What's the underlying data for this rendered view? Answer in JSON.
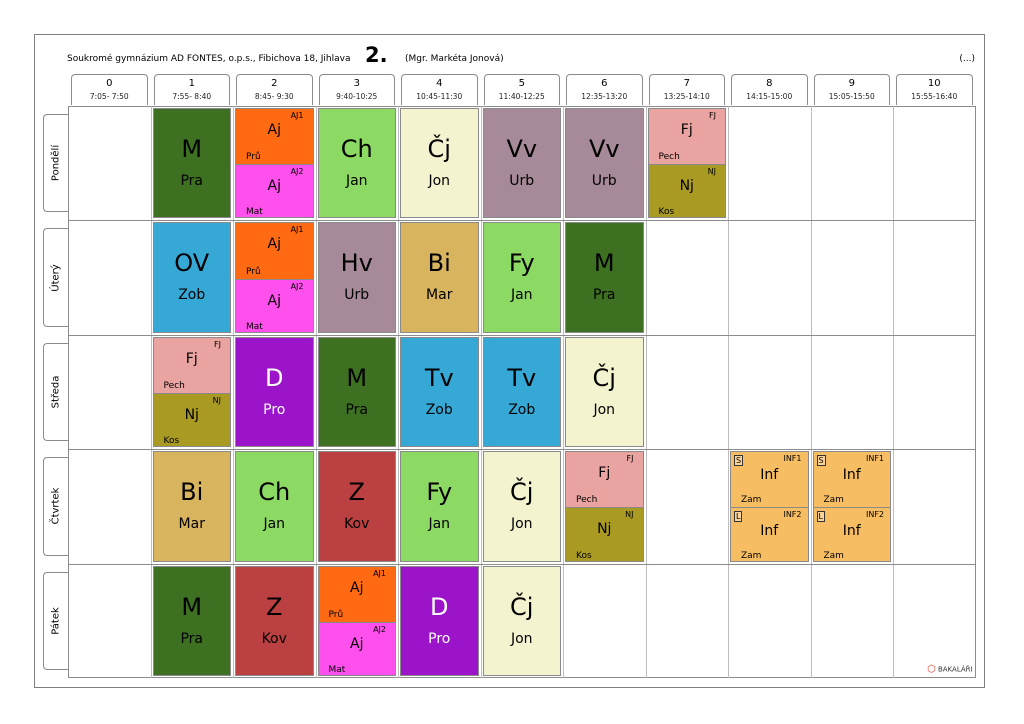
{
  "header": {
    "school": "Soukromé gymnázium AD FONTES, o.p.s., Fibichova 18, Jihlava",
    "class_name": "2.",
    "teacher": "(Mgr. Markéta Jonová)",
    "ellipsis": "(...)"
  },
  "periods": [
    {
      "num": "0",
      "time": "7:05- 7:50"
    },
    {
      "num": "1",
      "time": "7:55- 8:40"
    },
    {
      "num": "2",
      "time": "8:45- 9:30"
    },
    {
      "num": "3",
      "time": "9:40-10:25"
    },
    {
      "num": "4",
      "time": "10:45-11:30"
    },
    {
      "num": "5",
      "time": "11:40-12:25"
    },
    {
      "num": "6",
      "time": "12:35-13:20"
    },
    {
      "num": "7",
      "time": "13:25-14:10"
    },
    {
      "num": "8",
      "time": "14:15-15:00"
    },
    {
      "num": "9",
      "time": "15:05-15:50"
    },
    {
      "num": "10",
      "time": "15:55-16:40"
    }
  ],
  "days": [
    "Pondělí",
    "Úterý",
    "Středa",
    "Čtvrtek",
    "Pátek"
  ],
  "colors": {
    "M": "#3d7121",
    "Aj": "#ff6a13",
    "Aj2": "#ff50ee",
    "Ch": "#8cd964",
    "Cj": "#f4f3cf",
    "Vv": "#a68a99",
    "Fj": "#e9a3a0",
    "Nj": "#a99a23",
    "OV": "#36a8d6",
    "Hv": "#a68a99",
    "Bi": "#d9b45f",
    "Fy": "#8cd964",
    "D": "#9b14c9",
    "Tv": "#36a8d6",
    "Z": "#bb4042",
    "Inf": "#f7bd63"
  },
  "schedule": [
    {
      "day": 0,
      "period": 1,
      "subject": "M",
      "teacher": "Pra",
      "color": "#3d7121",
      "light": false
    },
    {
      "day": 0,
      "period": 2,
      "split": [
        {
          "subject": "Aj",
          "teacher": "Prů",
          "group": "AJ1",
          "color": "#ff6a13"
        },
        {
          "subject": "Aj",
          "teacher": "Mat",
          "group": "AJ2",
          "color": "#ff50ee"
        }
      ]
    },
    {
      "day": 0,
      "period": 3,
      "subject": "Ch",
      "teacher": "Jan",
      "color": "#8cd964"
    },
    {
      "day": 0,
      "period": 4,
      "subject": "Čj",
      "teacher": "Jon",
      "color": "#f4f3cf"
    },
    {
      "day": 0,
      "period": 5,
      "subject": "Vv",
      "teacher": "Urb",
      "color": "#a68a99"
    },
    {
      "day": 0,
      "period": 6,
      "subject": "Vv",
      "teacher": "Urb",
      "color": "#a68a99"
    },
    {
      "day": 0,
      "period": 7,
      "split": [
        {
          "subject": "Fj",
          "teacher": "Pech",
          "group": "FJ",
          "color": "#e9a3a0"
        },
        {
          "subject": "Nj",
          "teacher": "Kos",
          "group": "NJ",
          "color": "#a99a23"
        }
      ]
    },
    {
      "day": 1,
      "period": 1,
      "subject": "OV",
      "teacher": "Zob",
      "color": "#36a8d6"
    },
    {
      "day": 1,
      "period": 2,
      "split": [
        {
          "subject": "Aj",
          "teacher": "Prů",
          "group": "AJ1",
          "color": "#ff6a13"
        },
        {
          "subject": "Aj",
          "teacher": "Mat",
          "group": "AJ2",
          "color": "#ff50ee"
        }
      ]
    },
    {
      "day": 1,
      "period": 3,
      "subject": "Hv",
      "teacher": "Urb",
      "color": "#a68a99"
    },
    {
      "day": 1,
      "period": 4,
      "subject": "Bi",
      "teacher": "Mar",
      "color": "#d9b45f"
    },
    {
      "day": 1,
      "period": 5,
      "subject": "Fy",
      "teacher": "Jan",
      "color": "#8cd964"
    },
    {
      "day": 1,
      "period": 6,
      "subject": "M",
      "teacher": "Pra",
      "color": "#3d7121"
    },
    {
      "day": 2,
      "period": 1,
      "split": [
        {
          "subject": "Fj",
          "teacher": "Pech",
          "group": "FJ",
          "color": "#e9a3a0"
        },
        {
          "subject": "Nj",
          "teacher": "Kos",
          "group": "NJ",
          "color": "#a99a23"
        }
      ]
    },
    {
      "day": 2,
      "period": 2,
      "subject": "D",
      "teacher": "Pro",
      "color": "#9b14c9",
      "light": true
    },
    {
      "day": 2,
      "period": 3,
      "subject": "M",
      "teacher": "Pra",
      "color": "#3d7121"
    },
    {
      "day": 2,
      "period": 4,
      "subject": "Tv",
      "teacher": "Zob",
      "color": "#36a8d6"
    },
    {
      "day": 2,
      "period": 5,
      "subject": "Tv",
      "teacher": "Zob",
      "color": "#36a8d6"
    },
    {
      "day": 2,
      "period": 6,
      "subject": "Čj",
      "teacher": "Jon",
      "color": "#f4f3cf"
    },
    {
      "day": 3,
      "period": 1,
      "subject": "Bi",
      "teacher": "Mar",
      "color": "#d9b45f"
    },
    {
      "day": 3,
      "period": 2,
      "subject": "Ch",
      "teacher": "Jan",
      "color": "#8cd964"
    },
    {
      "day": 3,
      "period": 3,
      "subject": "Z",
      "teacher": "Kov",
      "color": "#bb4042"
    },
    {
      "day": 3,
      "period": 4,
      "subject": "Fy",
      "teacher": "Jan",
      "color": "#8cd964"
    },
    {
      "day": 3,
      "period": 5,
      "subject": "Čj",
      "teacher": "Jon",
      "color": "#f4f3cf"
    },
    {
      "day": 3,
      "period": 6,
      "split": [
        {
          "subject": "Fj",
          "teacher": "Pech",
          "group": "FJ",
          "color": "#e9a3a0"
        },
        {
          "subject": "Nj",
          "teacher": "Kos",
          "group": "NJ",
          "color": "#a99a23"
        }
      ]
    },
    {
      "day": 3,
      "period": 8,
      "split": [
        {
          "subject": "Inf",
          "teacher": "Zam",
          "group": "INF1",
          "mark": "S",
          "color": "#f7bd63"
        },
        {
          "subject": "Inf",
          "teacher": "Zam",
          "group": "INF2",
          "mark": "L",
          "color": "#f7bd63"
        }
      ]
    },
    {
      "day": 3,
      "period": 9,
      "split": [
        {
          "subject": "Inf",
          "teacher": "Zam",
          "group": "INF1",
          "mark": "S",
          "color": "#f7bd63"
        },
        {
          "subject": "Inf",
          "teacher": "Zam",
          "group": "INF2",
          "mark": "L",
          "color": "#f7bd63"
        }
      ]
    },
    {
      "day": 4,
      "period": 1,
      "subject": "M",
      "teacher": "Pra",
      "color": "#3d7121"
    },
    {
      "day": 4,
      "period": 2,
      "subject": "Z",
      "teacher": "Kov",
      "color": "#bb4042"
    },
    {
      "day": 4,
      "period": 3,
      "split": [
        {
          "subject": "Aj",
          "teacher": "Prů",
          "group": "AJ1",
          "color": "#ff6a13"
        },
        {
          "subject": "Aj",
          "teacher": "Mat",
          "group": "AJ2",
          "color": "#ff50ee"
        }
      ]
    },
    {
      "day": 4,
      "period": 4,
      "subject": "D",
      "teacher": "Pro",
      "color": "#9b14c9",
      "light": true
    },
    {
      "day": 4,
      "period": 5,
      "subject": "Čj",
      "teacher": "Jon",
      "color": "#f4f3cf"
    }
  ],
  "brand": {
    "name": "BAKALÁŘI",
    "logo_icon": "bakalari-logo-icon"
  }
}
